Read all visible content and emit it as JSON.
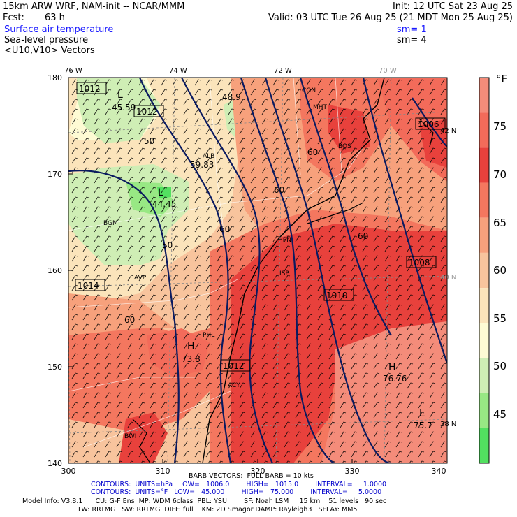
{
  "header": {
    "model": "15km ARW WRF, NAM-init -- NCAR/MMM",
    "init": "Init: 12 UTC Sat 23 Aug 25",
    "fcst_label": "Fcst:",
    "fcst_value": "63 h",
    "valid": "Valid: 03 UTC Tue 26 Aug 25 (21 MDT Mon 25 Aug 25)",
    "fields": [
      {
        "name": "Surface air temperature",
        "sm": "sm= 1"
      },
      {
        "name": "Sea-level pressure",
        "sm": "sm= 4"
      },
      {
        "name": "<U10,V10> Vectors",
        "sm": ""
      }
    ]
  },
  "axes": {
    "top_lon_labels": [
      "76 W",
      "74 W",
      "72 W",
      "70 W"
    ],
    "right_lat_labels": [
      "42 N",
      "40 N",
      "38 N"
    ],
    "left_y_ticks": [
      "180",
      "170",
      "160",
      "150",
      "140"
    ],
    "bottom_x_ticks": [
      "300",
      "310",
      "320",
      "330",
      "340"
    ]
  },
  "colorbar": {
    "unit": "°F",
    "labels": [
      "75",
      "70",
      "65",
      "60",
      "55",
      "50",
      "45"
    ],
    "colors": [
      "#f48c7a",
      "#f36b5a",
      "#e8413c",
      "#f4775f",
      "#f7a17c",
      "#f8c49d",
      "#fbe4bb",
      "#fefbd4",
      "#cfeeb5",
      "#98e884",
      "#52e060"
    ]
  },
  "map_labels": {
    "highs": [
      {
        "letter": "H",
        "value": "76.76"
      },
      {
        "letter": "H",
        "value": "73.8"
      }
    ],
    "lows": [
      {
        "letter": "L",
        "value": "45.59"
      },
      {
        "letter": "L",
        "value": "44.45"
      },
      {
        "letter": "L",
        "value": "75.7"
      }
    ],
    "station_values": [
      "59.83",
      "48.9"
    ],
    "contour_values": [
      "50",
      "50",
      "60",
      "60",
      "60",
      "60",
      "60"
    ],
    "pressure_boxes": [
      "1012",
      "1012",
      "1006",
      "1008",
      "1010",
      "1014",
      "1012"
    ],
    "stations": [
      "CON",
      "MHT",
      "ALB",
      "BGM",
      "AVP",
      "HPN",
      "ACY",
      "BWI",
      "PHL",
      "ISP",
      "BOS"
    ]
  },
  "footer": {
    "barb": "BARB VECTORS:  FULL BARB = 10 kts",
    "contours_p": "CONTOURS:  UNITS=hPa   LOW=   1006.0        HIGH=   1015.0        INTERVAL=     1.0000",
    "contours_t": "CONTOURS:  UNITS=°F   LOW=   45.000        HIGH=   75.000        INTERVAL=     5.0000",
    "model_info_1": "Model Info: V3.8.1      CU: G-F Ens  MP: WDM 6class  PBL: YSU        SF: Noah LSM     15 km    51 levels   90 sec",
    "model_info_2": "LW: RRTMG   SW: RRTMG  DIFF: full    KM: 2D Smagor DAMP: Rayleigh3   SFLAY: MM5"
  }
}
